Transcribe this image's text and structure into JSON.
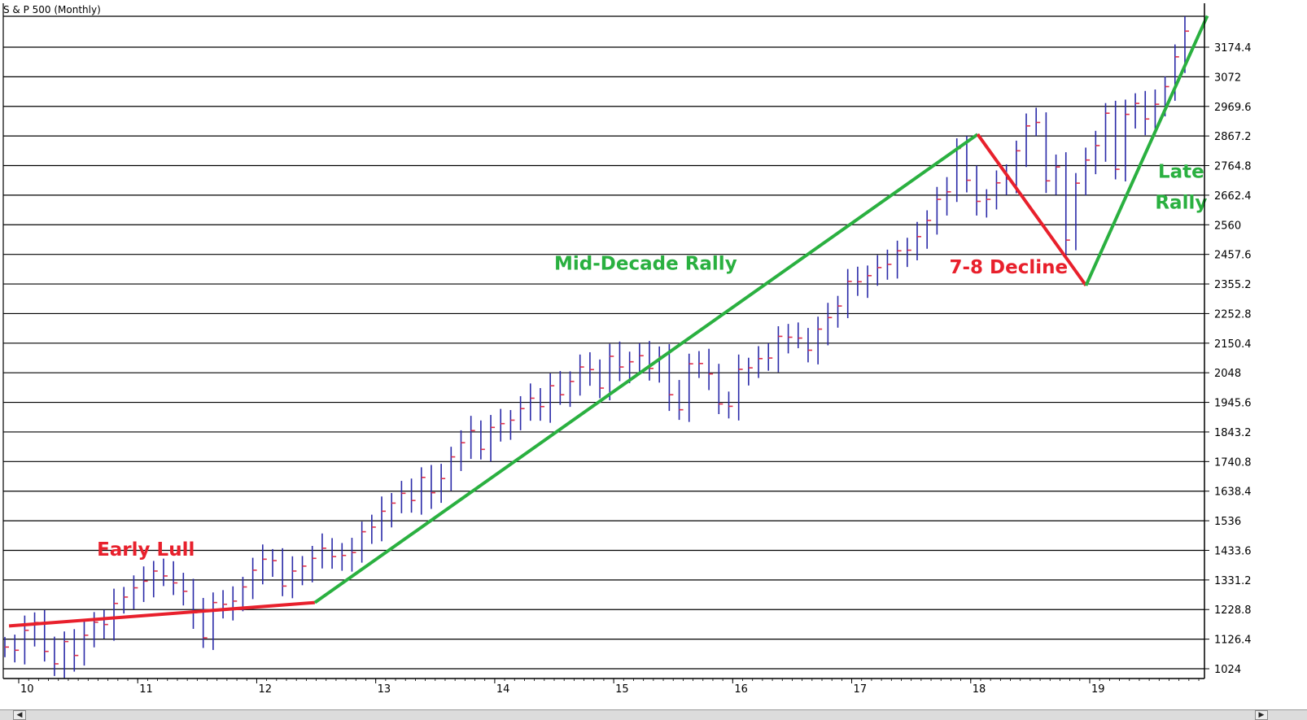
{
  "chart_data": {
    "type": "bar",
    "subtype": "ohlc-monthly",
    "title": "S & P 500 (Monthly)",
    "xlabel": "",
    "ylabel": "",
    "x_tick_labels": [
      "10",
      "11",
      "12",
      "13",
      "14",
      "15",
      "16",
      "17",
      "18",
      "19"
    ],
    "y_tick_labels": [
      "1024",
      "1126.4",
      "1228.8",
      "1331.2",
      "1433.6",
      "1536",
      "1638.4",
      "1740.8",
      "1843.2",
      "1945.6",
      "2048",
      "2150.4",
      "2252.8",
      "2355.2",
      "2457.6",
      "2560",
      "2662.4",
      "2764.8",
      "2867.2",
      "2969.6",
      "3072",
      "3174.4"
    ],
    "ylim": [
      990,
      3310
    ],
    "xlim": [
      2009.85,
      2019.95
    ],
    "grid": "horizontal",
    "y_axis_position": "right",
    "bar_color": "#2a2aa8",
    "close_tick_color": "#e0304a",
    "series": [
      {
        "x_start": 2010.0,
        "x_step": 0.08333,
        "values": [
          1099,
          1088,
          1157,
          1184,
          1084,
          1041,
          1118,
          1070,
          1140,
          1185,
          1177,
          1250,
          1272,
          1304,
          1327,
          1362,
          1345,
          1321,
          1292,
          1218,
          1131,
          1253,
          1247,
          1258,
          1307,
          1365,
          1403,
          1398,
          1310,
          1362,
          1379,
          1406,
          1441,
          1412,
          1416,
          1426,
          1498,
          1514,
          1569,
          1597,
          1631,
          1606,
          1686,
          1633,
          1682,
          1757,
          1806,
          1848,
          1783,
          1859,
          1872,
          1884,
          1924,
          1960,
          1931,
          2003,
          1972,
          2018,
          2068,
          2059,
          1995,
          2105,
          2068,
          2086,
          2107,
          2063,
          2104,
          1972,
          1920,
          2079,
          2080,
          2044,
          1940,
          1932,
          2060,
          2065,
          2097,
          2099,
          2174,
          2171,
          2168,
          2126,
          2199,
          2239,
          2279,
          2364,
          2363,
          2384,
          2412,
          2423,
          2470,
          2472,
          2519,
          2575,
          2648,
          2674,
          2824,
          2714,
          2641,
          2648,
          2705,
          2718,
          2816,
          2902,
          2914,
          2712,
          2760,
          2507,
          2704,
          2784,
          2834,
          2946,
          2752,
          2942,
          2980,
          2926,
          2977,
          3038,
          3141,
          3230
        ]
      }
    ],
    "annotations": [
      {
        "label": "Early Lull",
        "color": "#e8202c",
        "x": 2011.0,
        "y": 1415
      },
      {
        "label": "Mid-Decade Rally",
        "color": "#2ab040",
        "x": 2015.2,
        "y": 2405
      },
      {
        "label": "7-8 Decline",
        "color": "#e8202c",
        "x": 2018.25,
        "y": 2392
      },
      {
        "label": "Late",
        "color": "#2ab040",
        "x": 2019.7,
        "y": 2722
      },
      {
        "label": "Rally",
        "color": "#2ab040",
        "x": 2019.7,
        "y": 2615
      }
    ],
    "trend_lines": [
      {
        "color": "#e8202c",
        "points": [
          [
            2009.85,
            1172
          ],
          [
            2012.42,
            1253
          ]
        ]
      },
      {
        "color": "#2ab040",
        "points": [
          [
            2012.42,
            1253
          ],
          [
            2017.99,
            2873
          ]
        ]
      },
      {
        "color": "#e8202c",
        "points": [
          [
            2017.99,
            2873
          ],
          [
            2018.9,
            2350
          ]
        ]
      },
      {
        "color": "#2ab040",
        "points": [
          [
            2018.9,
            2350
          ],
          [
            2019.92,
            3283
          ]
        ]
      },
      {
        "color": "#2ab040",
        "points": [
          [
            2009.85,
            1172
          ],
          [
            2012.42,
            1253
          ]
        ],
        "hidden": true
      }
    ]
  }
}
